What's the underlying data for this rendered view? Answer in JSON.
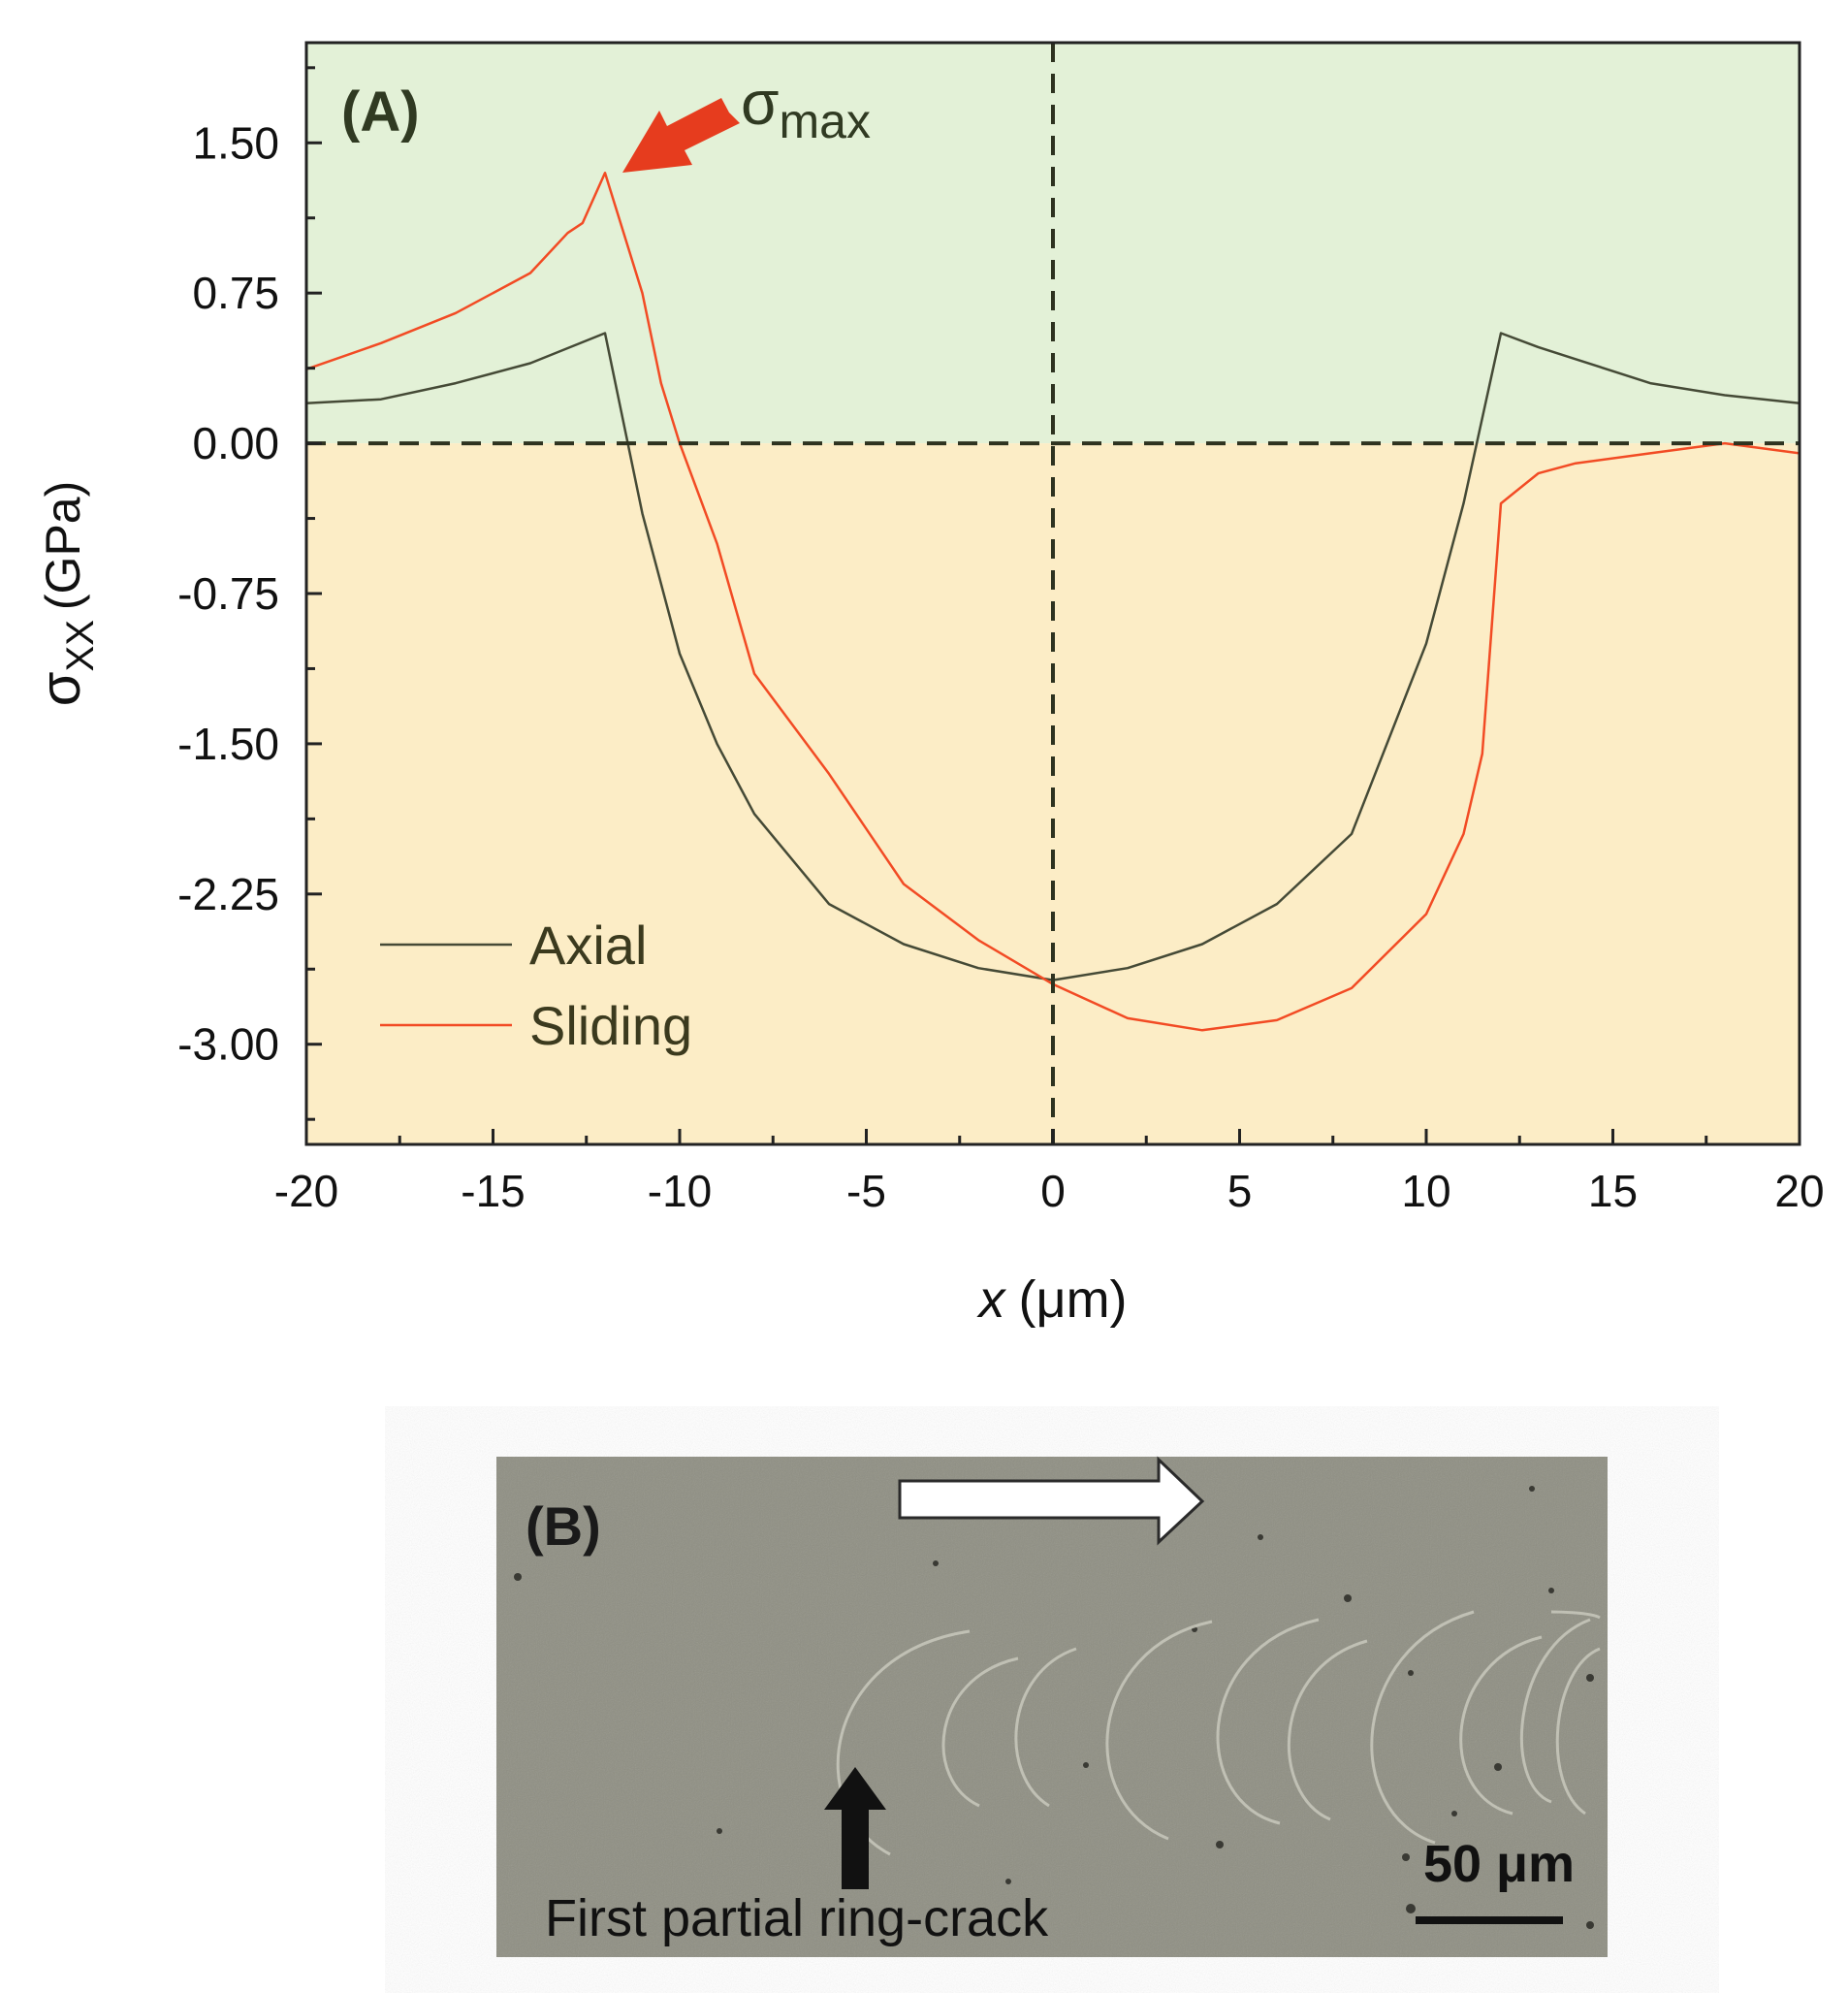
{
  "colors": {
    "tension_bg": "#e3f1d7",
    "compression_bg": "#fcedc6",
    "axial": "#454a36",
    "sliding": "#f24b24",
    "arrow_red": "#e63c1e",
    "micrograph_bg": "#8f8f83"
  },
  "panel_a": {
    "label": "(A)",
    "annotation": {
      "symbol": "σ",
      "subscript": "max"
    }
  },
  "chart_data": {
    "type": "line",
    "ylabel": {
      "symbol": "σ",
      "subscript": "XX",
      "unit": "(GPa)"
    },
    "xlabel": {
      "symbol": "x",
      "unit": "(μm)"
    },
    "xlim": [
      -20,
      20
    ],
    "ylim": [
      -3.5,
      2.0
    ],
    "xticks": [
      "-20",
      "-15",
      "-10",
      "-5",
      "0",
      "5",
      "10",
      "15",
      "20"
    ],
    "xtick_values": [
      -20,
      -15,
      -10,
      -5,
      0,
      5,
      10,
      15,
      20
    ],
    "yticks": [
      "1.50",
      "0.75",
      "0.00",
      "-0.75",
      "-1.50",
      "-2.25",
      "-3.00"
    ],
    "ytick_values": [
      1.5,
      0.75,
      0.0,
      -0.75,
      -1.5,
      -2.25,
      -3.0
    ],
    "shaded_regions": [
      "tension (y > 0)",
      "compression (y < 0)"
    ],
    "reference_lines": {
      "horizontal": 0,
      "vertical": 0,
      "style": "dashed"
    },
    "legend_position": "lower-left",
    "series": [
      {
        "name": "Axial",
        "color": "#454a36",
        "x": [
          -20,
          -18,
          -16,
          -14,
          -12,
          -11,
          -10,
          -9,
          -8,
          -6,
          -4,
          -2,
          0,
          2,
          4,
          6,
          8,
          10,
          11,
          12,
          13,
          14,
          16,
          18,
          20
        ],
        "y": [
          0.2,
          0.22,
          0.3,
          0.4,
          0.55,
          -0.35,
          -1.05,
          -1.5,
          -1.85,
          -2.3,
          -2.5,
          -2.62,
          -2.68,
          -2.62,
          -2.5,
          -2.3,
          -1.95,
          -1.0,
          -0.3,
          0.55,
          0.48,
          0.42,
          0.3,
          0.24,
          0.2
        ]
      },
      {
        "name": "Sliding",
        "color": "#f24b24",
        "x": [
          -20,
          -18,
          -16,
          -14,
          -13,
          -12.6,
          -12,
          -11,
          -10.5,
          -10,
          -9,
          -8,
          -6,
          -4,
          -2,
          0,
          2,
          4,
          6,
          8,
          10,
          11,
          11.5,
          12,
          13,
          14,
          16,
          18,
          20
        ],
        "y": [
          0.37,
          0.5,
          0.65,
          0.85,
          1.05,
          1.1,
          1.35,
          0.75,
          0.3,
          0.0,
          -0.5,
          -1.15,
          -1.65,
          -2.2,
          -2.48,
          -2.7,
          -2.87,
          -2.93,
          -2.88,
          -2.72,
          -2.35,
          -1.95,
          -1.55,
          -0.3,
          -0.15,
          -0.1,
          -0.05,
          0.0,
          -0.05
        ]
      }
    ]
  },
  "panel_b": {
    "label": "(B)",
    "caption": "First partial ring-crack",
    "scale_bar": "50 μm",
    "sliding_direction_icon": "right-arrow-icon",
    "crack_pointer_icon": "up-arrow-icon"
  }
}
